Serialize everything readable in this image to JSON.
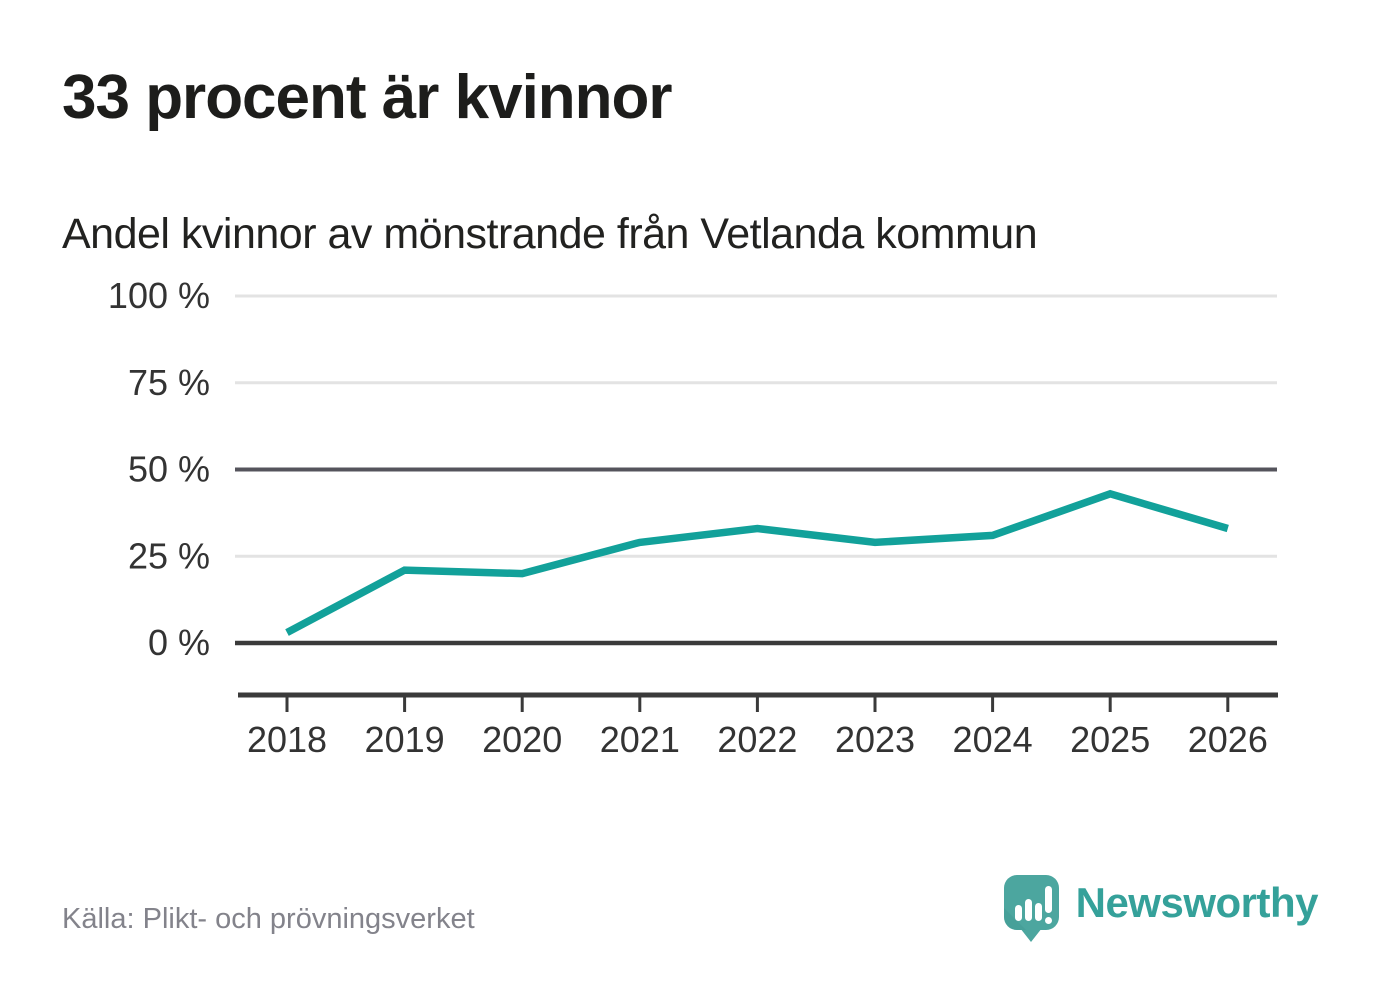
{
  "header": {
    "title": "33 procent är kvinnor",
    "subtitle": "Andel kvinnor av mönstrande från Vetlanda kommun"
  },
  "chart_data": {
    "type": "line",
    "title": "Andel kvinnor av mönstrande från Vetlanda kommun",
    "categories": [
      "2018",
      "2019",
      "2020",
      "2021",
      "2022",
      "2023",
      "2024",
      "2025",
      "2026"
    ],
    "series": [
      {
        "name": "Andel kvinnor (%)",
        "values": [
          3,
          21,
          20,
          29,
          33,
          29,
          31,
          43,
          33
        ]
      }
    ],
    "xlabel": "",
    "ylabel": "",
    "ylim": [
      0,
      100
    ],
    "yticks": [
      100,
      75,
      50,
      25,
      0
    ],
    "ytick_labels": [
      "100 %",
      "75 %",
      "50 %",
      "25 %",
      "0 %"
    ],
    "grid": "horizontal",
    "legend": "none",
    "line_color": "#12a19a"
  },
  "footer": {
    "source": "Källa: Plikt- och prövningsverket",
    "brand": "Newsworthy"
  },
  "icons": {
    "logo": "newsworthy-speech-bubble-barchart-icon"
  },
  "colors": {
    "accent_line": "#12a19a",
    "brand_mark": "#4ca69f",
    "brand_text": "#35a19a",
    "grid_light": "#e3e3e3",
    "grid_mid": "#55545c",
    "grid_zero": "#3a3a3a",
    "axis_text": "#333333",
    "source_text": "#83838b",
    "title_text": "#1d1d1b"
  }
}
